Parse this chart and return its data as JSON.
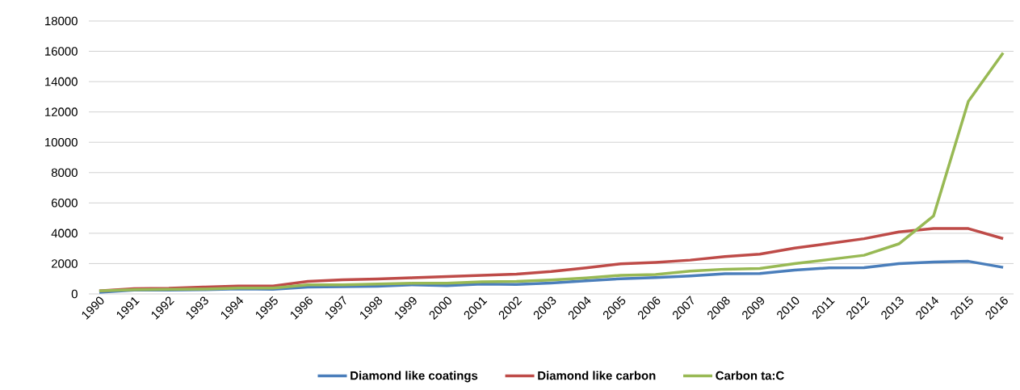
{
  "chart_data": {
    "type": "line",
    "categories": [
      "1990",
      "1991",
      "1992",
      "1993",
      "1994",
      "1995",
      "1996",
      "1997",
      "1998",
      "1999",
      "2000",
      "2001",
      "2002",
      "2003",
      "2004",
      "2005",
      "2006",
      "2007",
      "2008",
      "2009",
      "2010",
      "2011",
      "2012",
      "2013",
      "2014",
      "2015",
      "2016"
    ],
    "series": [
      {
        "name": "Diamond like coatings",
        "color": "#4a7ebb",
        "values": [
          100,
          250,
          250,
          280,
          330,
          300,
          450,
          480,
          500,
          600,
          550,
          650,
          620,
          720,
          870,
          1000,
          1080,
          1180,
          1330,
          1350,
          1570,
          1720,
          1730,
          2000,
          2100,
          2150,
          1750
        ]
      },
      {
        "name": "Diamond like carbon",
        "color": "#be4b48",
        "values": [
          200,
          350,
          370,
          450,
          520,
          520,
          830,
          930,
          980,
          1060,
          1150,
          1220,
          1300,
          1480,
          1720,
          1980,
          2080,
          2230,
          2460,
          2620,
          3020,
          3330,
          3640,
          4090,
          4310,
          4310,
          3650
        ]
      },
      {
        "name": "Carbon ta:C",
        "color": "#98b954",
        "values": [
          200,
          280,
          300,
          320,
          380,
          380,
          600,
          600,
          650,
          700,
          700,
          800,
          820,
          920,
          1050,
          1230,
          1280,
          1500,
          1630,
          1680,
          2000,
          2270,
          2550,
          3300,
          5150,
          12700,
          15900
        ]
      }
    ],
    "ylim": [
      0,
      18000
    ],
    "yticks": [
      0,
      2000,
      4000,
      6000,
      8000,
      10000,
      12000,
      14000,
      16000,
      18000
    ],
    "grid": "y",
    "legend": "bottom",
    "marker": "none",
    "line_style": "solid"
  }
}
